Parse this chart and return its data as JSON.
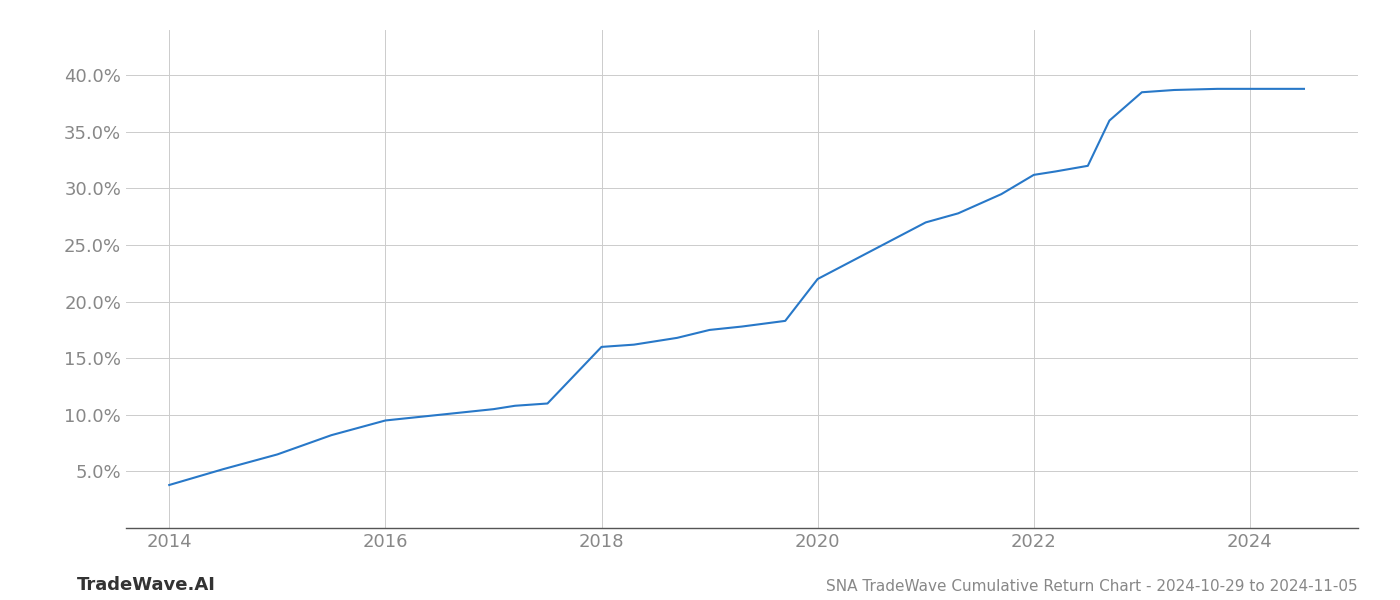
{
  "title": "SNA TradeWave Cumulative Return Chart - 2024-10-29 to 2024-11-05",
  "watermark": "TradeWave.AI",
  "line_color": "#2878C8",
  "line_width": 1.5,
  "background_color": "#ffffff",
  "grid_color": "#cccccc",
  "x_years": [
    2014.0,
    2014.5,
    2015.0,
    2015.5,
    2016.0,
    2016.3,
    2016.7,
    2017.0,
    2017.2,
    2017.5,
    2018.0,
    2018.3,
    2018.7,
    2019.0,
    2019.3,
    2019.7,
    2020.0,
    2020.3,
    2020.7,
    2021.0,
    2021.3,
    2021.7,
    2022.0,
    2022.2,
    2022.5,
    2022.7,
    2023.0,
    2023.3,
    2023.7,
    2024.0,
    2024.5
  ],
  "y_values": [
    3.8,
    5.2,
    6.5,
    8.2,
    9.5,
    9.8,
    10.2,
    10.5,
    10.8,
    11.0,
    16.0,
    16.2,
    16.8,
    17.5,
    17.8,
    18.3,
    22.0,
    23.5,
    25.5,
    27.0,
    27.8,
    29.5,
    31.2,
    31.5,
    32.0,
    36.0,
    38.5,
    38.7,
    38.8,
    38.8,
    38.8
  ],
  "xlim": [
    2013.6,
    2025.0
  ],
  "ylim": [
    0,
    44
  ],
  "yticks": [
    5.0,
    10.0,
    15.0,
    20.0,
    25.0,
    30.0,
    35.0,
    40.0
  ],
  "xticks": [
    2014,
    2016,
    2018,
    2020,
    2022,
    2024
  ],
  "tick_fontsize": 13,
  "title_fontsize": 11,
  "watermark_fontsize": 13
}
